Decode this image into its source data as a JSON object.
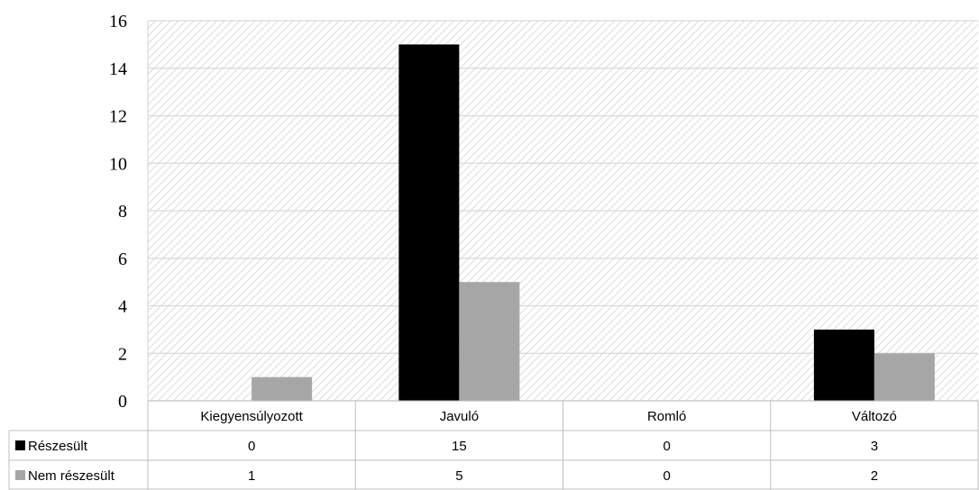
{
  "colors": {
    "series_1": "#000000",
    "series_2": "#a6a6a6",
    "gridline": "#d9d9d9",
    "hatch": "#d0d0d0",
    "table_border": "#bfbfbf"
  },
  "chart_data": {
    "type": "bar",
    "title": "",
    "xlabel": "",
    "ylabel": "",
    "categories": [
      "Kiegyensúlyozott",
      "Javuló",
      "Romló",
      "Változó"
    ],
    "series": [
      {
        "name": "Részesült",
        "values": [
          0,
          15,
          0,
          3
        ]
      },
      {
        "name": "Nem részesült",
        "values": [
          1,
          5,
          0,
          2
        ]
      }
    ],
    "ylim": [
      0,
      16
    ],
    "yticks": [
      0,
      2,
      4,
      6,
      8,
      10,
      12,
      14,
      16
    ],
    "grid": true,
    "background": "diagonal hatch",
    "legend": "data table below chart"
  }
}
